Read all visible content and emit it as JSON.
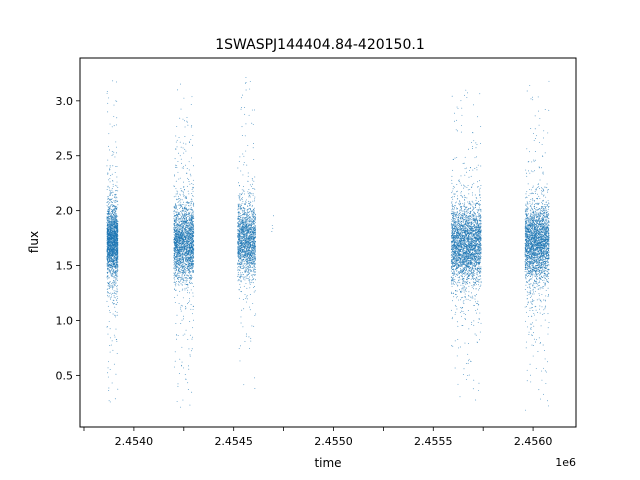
{
  "chart_data": {
    "type": "scatter",
    "title": "1SWASPJ144404.84-420150.1",
    "xlabel": "time",
    "ylabel": "flux",
    "x_offset_label": "1e6",
    "xlim": [
      2453730,
      2456215
    ],
    "ylim": [
      0.03,
      3.39
    ],
    "x_ticks": [
      2453750,
      2454000,
      2454250,
      2454500,
      2454750,
      2455000,
      2455250,
      2455500,
      2455750,
      2456000
    ],
    "x_tick_labels": [
      "2.4540",
      "2.4545",
      "2.4550",
      "2.4555",
      "2.4560"
    ],
    "x_tick_label_values": [
      2454000,
      2454500,
      2455000,
      2455500,
      2456000
    ],
    "y_ticks": [
      0.5,
      1.0,
      1.5,
      2.0,
      2.5,
      3.0
    ],
    "y_tick_labels": [
      "0.5",
      "1.0",
      "1.5",
      "2.0",
      "2.5",
      "3.0"
    ],
    "grid": false,
    "marker_color": "#1f77b4",
    "series": [
      {
        "segments": [
          {
            "x_start": 2453865,
            "x_end": 2453920,
            "flux_median": 1.72,
            "flux_core_spread": 0.16,
            "flux_min": 0.17,
            "flux_max": 3.23,
            "count": 2200
          },
          {
            "x_start": 2454200,
            "x_end": 2454300,
            "flux_median": 1.72,
            "flux_core_spread": 0.17,
            "flux_min": 0.18,
            "flux_max": 3.22,
            "count": 2400
          },
          {
            "x_start": 2454520,
            "x_end": 2454610,
            "flux_median": 1.73,
            "flux_core_spread": 0.16,
            "flux_min": 0.37,
            "flux_max": 3.22,
            "count": 1800
          },
          {
            "x_start": 2454690,
            "x_end": 2454700,
            "flux_median": 1.9,
            "flux_core_spread": 0.06,
            "flux_min": 1.76,
            "flux_max": 1.99,
            "count": 4
          },
          {
            "x_start": 2455590,
            "x_end": 2455740,
            "flux_median": 1.7,
            "flux_core_spread": 0.17,
            "flux_min": 0.2,
            "flux_max": 3.1,
            "count": 3200
          },
          {
            "x_start": 2455960,
            "x_end": 2456080,
            "flux_median": 1.71,
            "flux_core_spread": 0.17,
            "flux_min": 0.17,
            "flux_max": 3.23,
            "count": 2800
          }
        ]
      }
    ]
  }
}
